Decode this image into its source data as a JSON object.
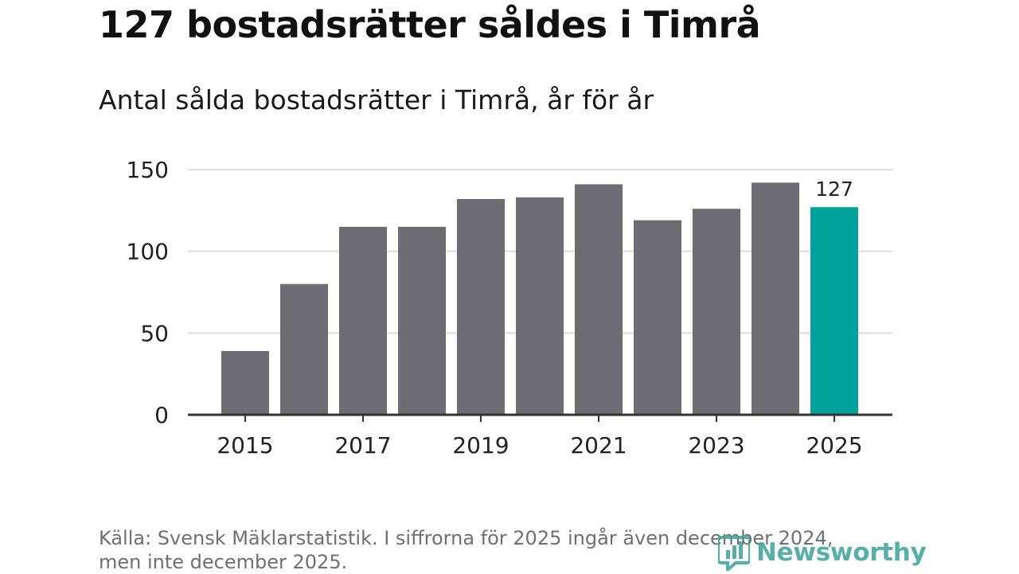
{
  "title": "127 bostadsrätter såldes i Timrå",
  "subtitle": "Antal sålda bostadsrätter i Timrå, år för år",
  "source_line1": "Källa: Svensk Mäklarstatistik. I siffrorna för 2025 ingår även december 2024,",
  "source_line2": "men inte december 2025.",
  "logo": {
    "text": "Newsworthy",
    "icon": "newsworthy-logo-icon",
    "color": "#3aa39a"
  },
  "colors": {
    "bar": "#6d6c73",
    "highlight": "#00a39a",
    "grid": "#dddddd",
    "axis": "#333333"
  },
  "chart_data": {
    "type": "bar",
    "title": "Antal sålda bostadsrätter i Timrå, år för år",
    "categories": [
      "2015",
      "2016",
      "2017",
      "2018",
      "2019",
      "2020",
      "2021",
      "2022",
      "2023",
      "2024",
      "2025"
    ],
    "values": [
      39,
      80,
      115,
      115,
      132,
      133,
      141,
      119,
      126,
      142,
      127
    ],
    "highlight": "2025",
    "data_labels": [
      {
        "category": "2025",
        "text": "127"
      }
    ],
    "x_tick_labels": [
      "2015",
      "2017",
      "2019",
      "2021",
      "2023",
      "2025"
    ],
    "y_ticks": [
      0,
      50,
      100,
      150
    ],
    "ylim": [
      0,
      150
    ],
    "xlabel": "",
    "ylabel": "",
    "grid": true
  }
}
